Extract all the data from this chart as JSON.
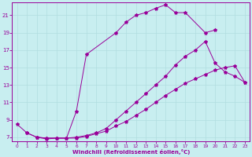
{
  "xlabel": "Windchill (Refroidissement éolien,°C)",
  "bg_color": "#c8eef0",
  "line_color": "#990099",
  "grid_color": "#b0dde0",
  "xlim": [
    -0.5,
    23.5
  ],
  "ylim": [
    6.5,
    22.5
  ],
  "yticks": [
    7,
    9,
    11,
    13,
    15,
    17,
    19,
    21
  ],
  "xticks": [
    0,
    1,
    2,
    3,
    4,
    5,
    6,
    7,
    8,
    9,
    10,
    11,
    12,
    13,
    14,
    15,
    16,
    17,
    18,
    19,
    20,
    21,
    22,
    23
  ],
  "curve1_x": [
    1,
    2,
    3,
    4,
    5,
    6,
    7,
    10,
    11,
    12,
    13,
    14,
    15,
    16,
    17,
    19,
    20
  ],
  "curve1_y": [
    7.5,
    7.0,
    6.8,
    6.9,
    6.9,
    10.0,
    16.5,
    19.0,
    20.2,
    21.0,
    21.3,
    21.8,
    22.2,
    21.3,
    21.3,
    19.0,
    19.3
  ],
  "curve2_x": [
    2,
    3,
    4,
    5,
    6,
    7,
    8,
    9,
    10,
    11,
    12,
    13,
    14,
    15,
    16,
    17,
    18,
    19,
    20,
    21,
    22,
    23
  ],
  "curve2_y": [
    7.0,
    6.9,
    6.9,
    6.9,
    6.9,
    7.1,
    7.4,
    7.7,
    8.3,
    8.8,
    9.5,
    10.2,
    11.0,
    11.8,
    12.5,
    13.2,
    13.7,
    14.2,
    14.7,
    15.0,
    15.2,
    13.3
  ],
  "curve3_x": [
    0,
    1,
    2,
    3,
    4,
    5,
    6,
    7,
    8,
    9,
    10,
    11,
    12,
    13,
    14,
    15,
    16,
    17,
    18,
    19,
    20,
    21,
    22,
    23
  ],
  "curve3_y": [
    8.5,
    7.5,
    7.0,
    6.9,
    6.9,
    6.9,
    7.0,
    7.2,
    7.5,
    8.0,
    9.0,
    10.0,
    11.0,
    12.0,
    13.0,
    14.0,
    15.3,
    16.3,
    17.0,
    18.0,
    15.5,
    14.5,
    14.0,
    13.3
  ]
}
